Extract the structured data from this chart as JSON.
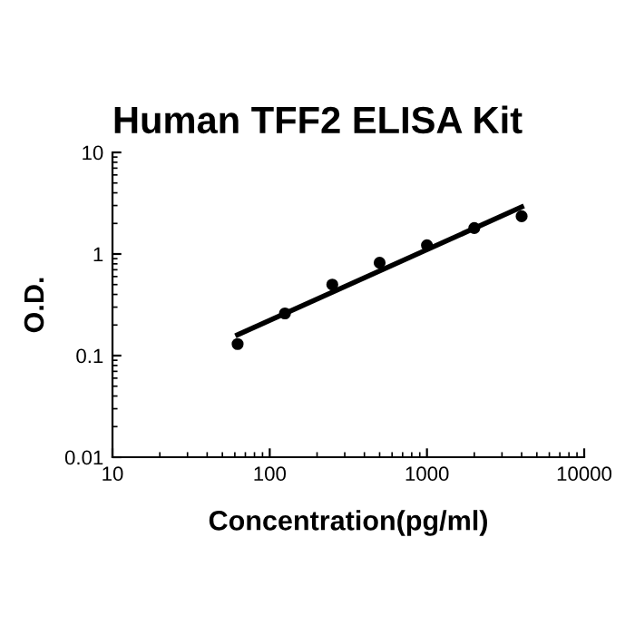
{
  "chart_data": {
    "type": "scatter",
    "title": "Human TFF2 ELISA Kit",
    "xlabel": "Concentration(pg/ml)",
    "ylabel": "O.D.",
    "log": "xy",
    "grid": false,
    "xlim": [
      10,
      10000
    ],
    "xticks": [
      10,
      100,
      1000,
      10000
    ],
    "ylim": [
      0.01,
      10
    ],
    "yticks": [
      0.01,
      0.1,
      1,
      10
    ],
    "series": [
      {
        "marker": "circle",
        "color": "#000000",
        "x": [
          62.5,
          125,
          250,
          500,
          1000,
          2000,
          4000
        ],
        "values": [
          0.13,
          0.26,
          0.5,
          0.82,
          1.22,
          1.8,
          2.35
        ]
      },
      {
        "type": "line",
        "marker": "none",
        "color": "#000000",
        "x": [
          62.5,
          4000
        ],
        "values": [
          0.16,
          2.9
        ]
      }
    ]
  }
}
